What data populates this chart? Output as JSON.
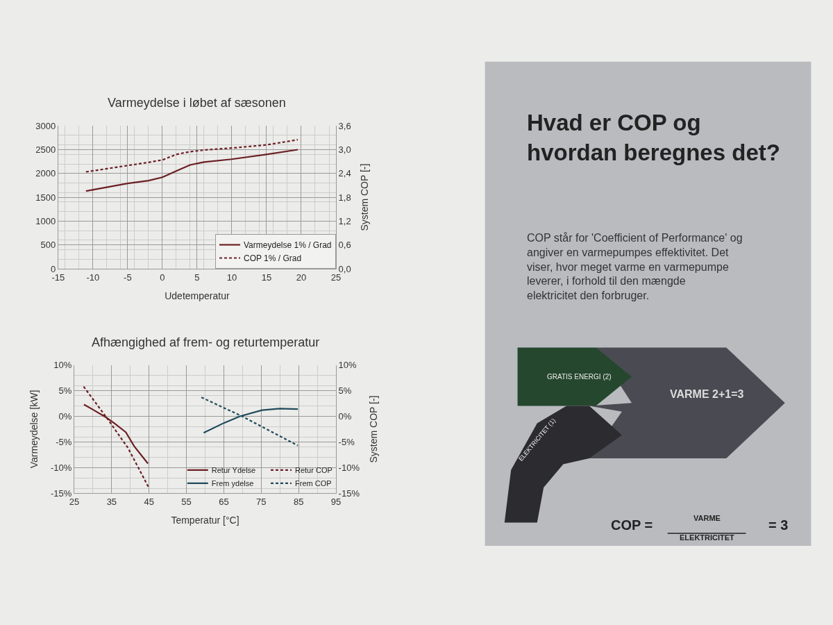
{
  "chart_data": [
    {
      "type": "line",
      "title": "Varmeydelse i løbet af sæsonen",
      "xlabel": "Udetemperatur",
      "y2label": "System COP [-]",
      "xlim": [
        -15,
        25
      ],
      "xticks": [
        -15,
        -10,
        -5,
        0,
        5,
        10,
        15,
        20,
        25
      ],
      "ylim": [
        0,
        3000
      ],
      "yticks": [
        0,
        500,
        1000,
        1500,
        2000,
        2500,
        3000
      ],
      "y2lim": [
        0,
        3.6
      ],
      "y2ticks": [
        {
          "value": 0,
          "label": "0,0"
        },
        {
          "value": 0.6,
          "label": "0,6"
        },
        {
          "value": 1.2,
          "label": "1,2"
        },
        {
          "value": 1.8,
          "label": "1,8"
        },
        {
          "value": 2.4,
          "label": "2,4"
        },
        {
          "value": 3.0,
          "label": "3,0"
        },
        {
          "value": 3.6,
          "label": "3,6"
        }
      ],
      "grid": true,
      "legend": "bottom right",
      "series": [
        {
          "name": "Varmeydelse 1% / Grad",
          "color": "#6b1f22",
          "line_style": "solid",
          "x": [
            -11,
            -5,
            -2,
            0,
            2,
            4,
            6,
            10,
            15,
            19.5
          ],
          "values": [
            1630,
            1790,
            1850,
            1920,
            2050,
            2180,
            2240,
            2300,
            2400,
            2500
          ]
        },
        {
          "name": "COP 1% / Grad",
          "color": "#6b1f22",
          "line_style": "dashed",
          "axis": "y2",
          "x": [
            -11,
            -5,
            -2,
            0,
            2,
            4,
            6,
            10,
            15,
            19.5
          ],
          "values": [
            2.44,
            2.6,
            2.68,
            2.74,
            2.88,
            2.95,
            2.99,
            3.04,
            3.12,
            3.25
          ]
        }
      ]
    },
    {
      "type": "line",
      "title": "Afhængighed af frem- og returtemperatur",
      "xlabel": "Temperatur [°C]",
      "ylabel": "Varmeydelse [kW]",
      "y2label": "System COP [-]",
      "xlim": [
        25,
        95
      ],
      "xticks": [
        25,
        35,
        45,
        55,
        65,
        75,
        85,
        95
      ],
      "ylim": [
        -15,
        10
      ],
      "yticks": [
        {
          "value": -15,
          "label": "-15%"
        },
        {
          "value": -10,
          "label": "-10%"
        },
        {
          "value": -5,
          "label": "-5%"
        },
        {
          "value": 0,
          "label": "0%"
        },
        {
          "value": 5,
          "label": "5%"
        },
        {
          "value": 10,
          "label": "10%"
        }
      ],
      "y2lim": [
        -15,
        10
      ],
      "y2ticks": [
        {
          "value": -15,
          "label": "-15%"
        },
        {
          "value": -10,
          "label": "-10%"
        },
        {
          "value": -5,
          "label": "-5%"
        },
        {
          "value": 0,
          "label": "0%"
        },
        {
          "value": 5,
          "label": "5%"
        },
        {
          "value": 10,
          "label": "10%"
        }
      ],
      "grid": true,
      "legend": "bottom right",
      "series": [
        {
          "name": "Retur Ydelse",
          "color": "#6b1f22",
          "line_style": "solid",
          "x": [
            27.6,
            30,
            33.5,
            36,
            38.8,
            41,
            44.7
          ],
          "values": [
            2.3,
            1.3,
            -0.2,
            -1.5,
            -3.1,
            -5.8,
            -9.2
          ]
        },
        {
          "name": "Retur COP",
          "color": "#6b1f22",
          "line_style": "dashed",
          "axis": "y2",
          "x": [
            27.5,
            33.8,
            39.4,
            45
          ],
          "values": [
            5.8,
            -0.4,
            -6.2,
            -14
          ]
        },
        {
          "name": "Frem ydelse",
          "color": "#1f4a5a",
          "line_style": "solid",
          "x": [
            59.6,
            65,
            69.3,
            75.2,
            80,
            84.8
          ],
          "values": [
            -3.2,
            -1.3,
            0,
            1.2,
            1.5,
            1.4
          ]
        },
        {
          "name": "Frem COP",
          "color": "#1f4a5a",
          "line_style": "dashed",
          "axis": "y2",
          "x": [
            59,
            69.9,
            84.8
          ],
          "values": [
            3.7,
            0,
            -5.7
          ]
        }
      ]
    },
    {
      "type": "other",
      "title": "Hvad er COP og hvordan beregnes det?",
      "subtitle": "COP står for 'Coefficient of Performance' og angiver en varmepumpes effektivitet. Det viser, hvor meget varme en varmepumpe leverer, i forhold til den mængde elektricitet den forbruger.",
      "annotations": [
        "GRATIS ENERGI (2)",
        "VARME 2+1=3",
        "ELEKTRICITET (1)",
        "COP =",
        "VARME",
        "ELEKTRICITET",
        "= 3"
      ]
    }
  ]
}
